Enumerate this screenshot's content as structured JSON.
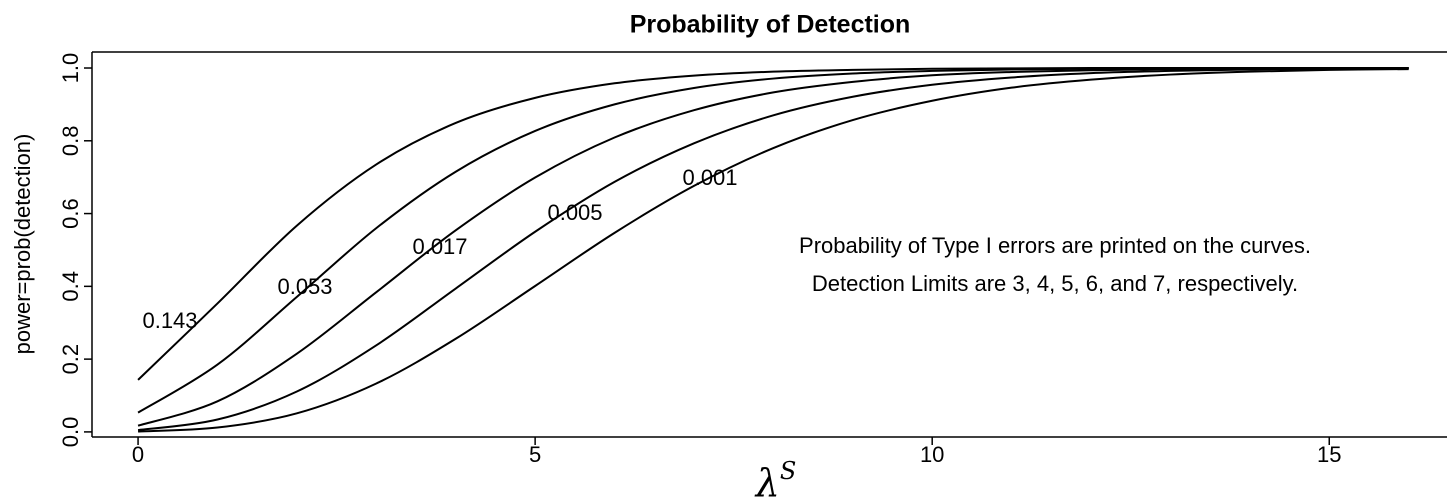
{
  "chart_data": {
    "type": "line",
    "title": "Probability of Detection",
    "ylabel": "power=prob(detection)",
    "xlabel": "λ",
    "xlabel_superscript": "S",
    "annotations": [
      "Probability of Type I errors are printed on the curves.",
      "Detection Limits are 3, 4, 5, 6, and 7, respectively."
    ],
    "x": [
      0,
      1,
      2,
      3,
      4,
      5,
      6,
      7,
      8,
      9,
      10,
      11,
      12,
      13,
      14,
      15,
      16
    ],
    "series": [
      {
        "name": "0.143",
        "color": "#000000",
        "values": [
          0.143,
          0.353,
          0.567,
          0.735,
          0.849,
          0.918,
          0.958,
          0.979,
          0.99,
          0.995,
          0.998,
          0.999,
          1.0,
          1.0,
          1.0,
          1.0,
          1.0
        ]
      },
      {
        "name": "0.053",
        "color": "#000000",
        "values": [
          0.053,
          0.185,
          0.371,
          0.56,
          0.715,
          0.827,
          0.9,
          0.945,
          0.971,
          0.985,
          0.992,
          0.996,
          0.998,
          0.999,
          1.0,
          1.0,
          1.0
        ]
      },
      {
        "name": "0.017",
        "color": "#000000",
        "values": [
          0.017,
          0.084,
          0.215,
          0.384,
          0.554,
          0.699,
          0.809,
          0.884,
          0.933,
          0.962,
          0.98,
          0.989,
          0.994,
          0.997,
          0.999,
          0.999,
          1.0
        ]
      },
      {
        "name": "0.005",
        "color": "#000000",
        "values": [
          0.005,
          0.034,
          0.111,
          0.238,
          0.394,
          0.55,
          0.687,
          0.793,
          0.87,
          0.921,
          0.954,
          0.974,
          0.986,
          0.992,
          0.996,
          0.998,
          0.999
        ]
      },
      {
        "name": "0.001",
        "color": "#000000",
        "values": [
          0.001,
          0.012,
          0.051,
          0.133,
          0.256,
          0.401,
          0.547,
          0.676,
          0.78,
          0.857,
          0.91,
          0.946,
          0.968,
          0.982,
          0.99,
          0.995,
          0.997
        ]
      }
    ],
    "xlim": [
      -0.58,
      16.47
    ],
    "ylim": [
      -0.014,
      1.044
    ],
    "xticks": [
      0,
      5,
      10,
      15
    ],
    "yticks": [
      {
        "value": 0,
        "label": "0.0"
      },
      0.2,
      0.4,
      0.6,
      0.8,
      {
        "value": 1,
        "label": "1.0"
      }
    ],
    "grid": false
  }
}
